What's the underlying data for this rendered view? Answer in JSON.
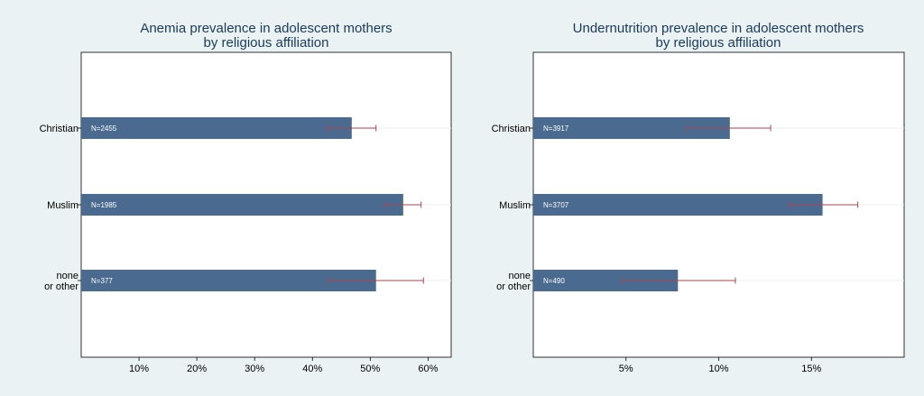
{
  "colors": {
    "background": "#eaf2f3",
    "plot_background": "#ffffff",
    "bar": "#4a6b8f",
    "error_bar": "#a8474f",
    "grid": "#e8eef2"
  },
  "chart_data": [
    {
      "type": "bar",
      "orientation": "horizontal",
      "title": [
        "Anemia prevalence in adolescent mothers",
        "by religious affiliation"
      ],
      "categories": [
        [
          "Christian"
        ],
        [
          "Muslim"
        ],
        [
          "none",
          "or other"
        ]
      ],
      "values": [
        46.8,
        55.7,
        51.0
      ],
      "ci_low": [
        42.5,
        52.5,
        42.8
      ],
      "ci_high": [
        51.0,
        58.8,
        59.2
      ],
      "n_labels": [
        "N=2455",
        "N=1985",
        "N=377"
      ],
      "xlim": [
        0,
        64
      ],
      "xticks": [
        10,
        20,
        30,
        40,
        50,
        60
      ],
      "xtick_labels": [
        "10%",
        "20%",
        "30%",
        "40%",
        "50%",
        "60%"
      ],
      "xlabel": "",
      "ylabel": "",
      "grid": true
    },
    {
      "type": "bar",
      "orientation": "horizontal",
      "title": [
        "Undernutrition prevalence in adolescent mothers",
        "by religious affiliation"
      ],
      "categories": [
        [
          "Christian"
        ],
        [
          "Muslim"
        ],
        [
          "none",
          "or other"
        ]
      ],
      "values": [
        10.6,
        15.6,
        7.8
      ],
      "ci_low": [
        8.3,
        13.8,
        4.8
      ],
      "ci_high": [
        12.8,
        17.5,
        10.9
      ],
      "n_labels": [
        "N=3917",
        "N=3707",
        "N=490"
      ],
      "xlim": [
        0,
        20
      ],
      "xticks": [
        5,
        10,
        15
      ],
      "xtick_labels": [
        "5%",
        "10%",
        "15%"
      ],
      "xlabel": "",
      "ylabel": "",
      "grid": true
    }
  ]
}
